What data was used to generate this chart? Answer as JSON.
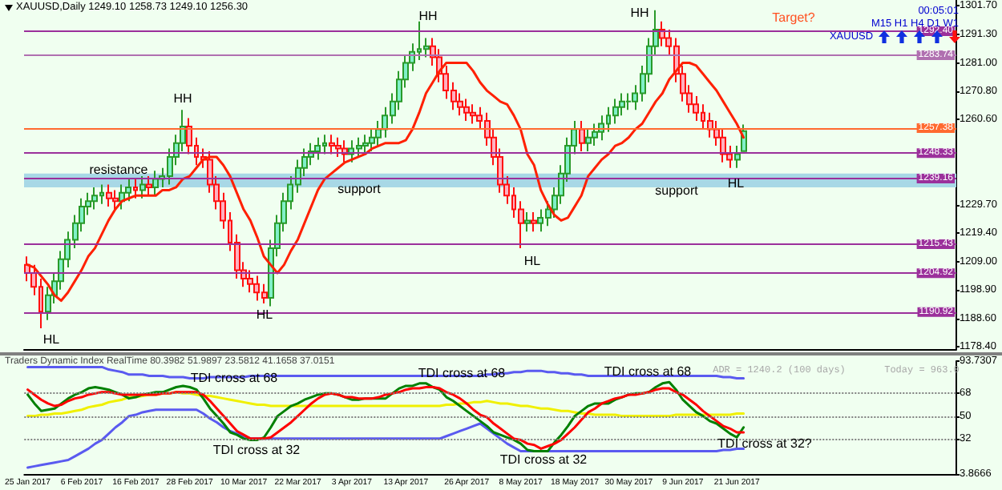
{
  "chart_data": [
    {
      "type": "candlestick",
      "title": "XAUUSD,Daily 1249.10 1258.73 1249.10 1256.30",
      "tick_labels": "y",
      "marker": "none",
      "categories": [
        null,
        null,
        null,
        null,
        null,
        null,
        null,
        null,
        null,
        null,
        null,
        null,
        null,
        null,
        null,
        null,
        null,
        null,
        null,
        null,
        null,
        null,
        null,
        null,
        null,
        null,
        null,
        null,
        null,
        null,
        null,
        null,
        null,
        null,
        null,
        null,
        null,
        null,
        null,
        null,
        null,
        null,
        null,
        null,
        null,
        null,
        null,
        null,
        null,
        null,
        null,
        null,
        null,
        null,
        null,
        null,
        null,
        null,
        null,
        null,
        null,
        null,
        null,
        null,
        null,
        null,
        null,
        null,
        null,
        null,
        null,
        null,
        null,
        null,
        null,
        null,
        null,
        null,
        null,
        null,
        null,
        null,
        null,
        null,
        null,
        null,
        null,
        null,
        null,
        null,
        null,
        null,
        null,
        null,
        null,
        null,
        null,
        null,
        null,
        null,
        null,
        null,
        null,
        null,
        null,
        null,
        null,
        null,
        null,
        null,
        null,
        null,
        null,
        null,
        null,
        null,
        null,
        null,
        null,
        null,
        null,
        null,
        null,
        null,
        null,
        null,
        null,
        null,
        null,
        null,
        null,
        null,
        null,
        null,
        null,
        null,
        null,
        null
      ],
      "ohlc": [
        [
          1208,
          1211,
          1202,
          1205
        ],
        [
          1205,
          1208,
          1197,
          1200
        ],
        [
          1200,
          1203,
          1185,
          1191
        ],
        [
          1191,
          1200,
          1188,
          1197
        ],
        [
          1197,
          1205,
          1194,
          1202
        ],
        [
          1202,
          1213,
          1199,
          1210
        ],
        [
          1210,
          1220,
          1207,
          1217
        ],
        [
          1217,
          1226,
          1214,
          1223
        ],
        [
          1223,
          1232,
          1220,
          1229
        ],
        [
          1229,
          1234,
          1226,
          1231
        ],
        [
          1231,
          1236,
          1228,
          1233
        ],
        [
          1233,
          1237,
          1230,
          1234
        ],
        [
          1234,
          1237,
          1229,
          1232
        ],
        [
          1232,
          1235,
          1228,
          1231
        ],
        [
          1231,
          1237,
          1228,
          1234
        ],
        [
          1234,
          1239,
          1231,
          1236
        ],
        [
          1236,
          1239,
          1232,
          1235
        ],
        [
          1235,
          1240,
          1232,
          1237
        ],
        [
          1237,
          1240,
          1233,
          1236
        ],
        [
          1236,
          1242,
          1233,
          1239
        ],
        [
          1239,
          1243,
          1236,
          1240
        ],
        [
          1240,
          1250,
          1237,
          1247
        ],
        [
          1247,
          1255,
          1244,
          1252
        ],
        [
          1252,
          1264,
          1249,
          1258
        ],
        [
          1258,
          1261,
          1248,
          1251
        ],
        [
          1251,
          1254,
          1244,
          1247
        ],
        [
          1247,
          1250,
          1243,
          1246
        ],
        [
          1246,
          1249,
          1234,
          1237
        ],
        [
          1237,
          1240,
          1228,
          1231
        ],
        [
          1231,
          1234,
          1221,
          1224
        ],
        [
          1224,
          1227,
          1213,
          1216
        ],
        [
          1216,
          1219,
          1203,
          1206
        ],
        [
          1206,
          1209,
          1200,
          1203
        ],
        [
          1203,
          1206,
          1198,
          1201
        ],
        [
          1201,
          1204,
          1195,
          1198
        ],
        [
          1198,
          1201,
          1194,
          1196
        ],
        [
          1196,
          1217,
          1193,
          1214
        ],
        [
          1214,
          1226,
          1211,
          1223
        ],
        [
          1223,
          1234,
          1220,
          1231
        ],
        [
          1231,
          1240,
          1228,
          1237
        ],
        [
          1237,
          1246,
          1234,
          1243
        ],
        [
          1243,
          1250,
          1240,
          1247
        ],
        [
          1247,
          1252,
          1244,
          1249
        ],
        [
          1249,
          1254,
          1246,
          1251
        ],
        [
          1251,
          1255,
          1248,
          1252
        ],
        [
          1252,
          1255,
          1248,
          1251
        ],
        [
          1251,
          1254,
          1247,
          1250
        ],
        [
          1250,
          1253,
          1245,
          1248
        ],
        [
          1248,
          1253,
          1245,
          1250
        ],
        [
          1250,
          1254,
          1247,
          1251
        ],
        [
          1251,
          1255,
          1248,
          1252
        ],
        [
          1252,
          1257,
          1249,
          1254
        ],
        [
          1254,
          1260,
          1251,
          1257
        ],
        [
          1257,
          1265,
          1254,
          1262
        ],
        [
          1262,
          1270,
          1259,
          1267
        ],
        [
          1267,
          1278,
          1264,
          1275
        ],
        [
          1275,
          1284,
          1272,
          1281
        ],
        [
          1281,
          1288,
          1278,
          1285
        ],
        [
          1285,
          1296,
          1282,
          1286
        ],
        [
          1286,
          1290,
          1283,
          1287
        ],
        [
          1287,
          1290,
          1280,
          1283
        ],
        [
          1283,
          1286,
          1274,
          1277
        ],
        [
          1277,
          1280,
          1268,
          1271
        ],
        [
          1271,
          1274,
          1264,
          1267
        ],
        [
          1267,
          1270,
          1262,
          1265
        ],
        [
          1265,
          1268,
          1260,
          1263
        ],
        [
          1263,
          1266,
          1259,
          1262
        ],
        [
          1262,
          1265,
          1257,
          1260
        ],
        [
          1260,
          1263,
          1251,
          1254
        ],
        [
          1254,
          1257,
          1244,
          1247
        ],
        [
          1247,
          1250,
          1234,
          1237
        ],
        [
          1237,
          1240,
          1230,
          1233
        ],
        [
          1233,
          1236,
          1225,
          1228
        ],
        [
          1228,
          1231,
          1214,
          1223
        ],
        [
          1223,
          1227,
          1220,
          1224
        ],
        [
          1224,
          1227,
          1220,
          1223
        ],
        [
          1223,
          1228,
          1220,
          1225
        ],
        [
          1225,
          1231,
          1222,
          1228
        ],
        [
          1228,
          1236,
          1225,
          1233
        ],
        [
          1233,
          1244,
          1230,
          1241
        ],
        [
          1241,
          1254,
          1238,
          1251
        ],
        [
          1251,
          1260,
          1248,
          1257
        ],
        [
          1257,
          1260,
          1249,
          1252
        ],
        [
          1252,
          1257,
          1249,
          1254
        ],
        [
          1254,
          1259,
          1251,
          1256
        ],
        [
          1256,
          1262,
          1253,
          1259
        ],
        [
          1259,
          1265,
          1256,
          1262
        ],
        [
          1262,
          1268,
          1259,
          1265
        ],
        [
          1265,
          1270,
          1262,
          1267
        ],
        [
          1267,
          1270,
          1264,
          1267
        ],
        [
          1267,
          1273,
          1264,
          1270
        ],
        [
          1270,
          1280,
          1267,
          1277
        ],
        [
          1277,
          1290,
          1274,
          1287
        ],
        [
          1287,
          1300,
          1284,
          1293
        ],
        [
          1293,
          1296,
          1287,
          1290
        ],
        [
          1290,
          1293,
          1284,
          1287
        ],
        [
          1287,
          1290,
          1274,
          1277
        ],
        [
          1277,
          1280,
          1267,
          1270
        ],
        [
          1270,
          1273,
          1263,
          1266
        ],
        [
          1266,
          1269,
          1260,
          1263
        ],
        [
          1263,
          1266,
          1257,
          1260
        ],
        [
          1260,
          1263,
          1254,
          1257
        ],
        [
          1257,
          1260,
          1251,
          1254
        ],
        [
          1254,
          1257,
          1245,
          1248
        ],
        [
          1248,
          1251,
          1243,
          1246
        ],
        [
          1246,
          1251,
          1243,
          1248
        ],
        [
          1249.1,
          1258.73,
          1249.1,
          1256.3
        ],
        null,
        null,
        null,
        null,
        null,
        null,
        null,
        null,
        null,
        null,
        null,
        null,
        null,
        null,
        null,
        null,
        null,
        null,
        null,
        null,
        null,
        null,
        null,
        null,
        null,
        null,
        null,
        null,
        null,
        null,
        null
      ],
      "series": [
        {
          "type": "line",
          "color": "#ff2000",
          "values": [
            1208,
            1207,
            1204,
            1201,
            1197,
            1195,
            1198,
            1202,
            1206,
            1211,
            1214,
            1219,
            1224,
            1228,
            1231,
            1232,
            1233,
            1233,
            1233,
            1233,
            1235,
            1235,
            1236,
            1239,
            1240,
            1243,
            1246,
            1247,
            1247,
            1244,
            1240,
            1234,
            1228,
            1224,
            1218,
            1211,
            1208,
            1205,
            1208,
            1213,
            1217,
            1223,
            1229,
            1235,
            1239,
            1241,
            1243,
            1245,
            1246,
            1247,
            1248,
            1250,
            1251,
            1252,
            1252,
            1252,
            1253,
            1257,
            1263,
            1270,
            1274,
            1278,
            1281,
            1281,
            1281,
            1281,
            1278,
            1274,
            1271,
            1269,
            1267,
            1266,
            1262,
            1257,
            1248,
            1244,
            1235,
            1230,
            1226,
            1224,
            1225,
            1229,
            1233,
            1240,
            1243,
            1246,
            1248,
            1251,
            1252,
            1254,
            1257,
            1259,
            1263,
            1267,
            1270,
            1275,
            1278,
            1281,
            1281,
            1280,
            1277,
            1274,
            1271,
            1267,
            1263,
            1259,
            1254,
            null,
            null,
            null,
            null,
            null,
            null,
            null,
            null,
            null,
            null,
            null,
            null,
            null,
            null,
            null,
            null,
            null,
            null,
            null,
            null,
            null,
            null,
            null,
            null,
            null,
            null,
            null,
            null,
            null,
            null,
            null
          ]
        }
      ],
      "ylim": [
        1177.5,
        1303.5
      ],
      "yticks": [
        {
          "value": 1301.7,
          "label": "1301.70"
        },
        {
          "value": 1291.3,
          "label": "1291.30"
        },
        {
          "value": 1281,
          "label": "1281.00"
        },
        {
          "value": 1270.8,
          "label": "1270.80"
        },
        {
          "value": 1260.6,
          "label": "1260.60"
        },
        {
          "value": 1229.7,
          "label": "1229.70"
        },
        {
          "value": 1219.4,
          "label": "1219.40"
        },
        {
          "value": 1209,
          "label": "1209.00"
        },
        {
          "value": 1198.9,
          "label": "1198.90"
        },
        {
          "value": 1188.6,
          "label": "1188.60"
        },
        {
          "value": 1178.4,
          "label": "1178.40"
        }
      ],
      "ref_lines": [
        {
          "axis": "y",
          "value": 1292.4,
          "label": "1292.40",
          "color": "#9b309b"
        },
        {
          "axis": "y",
          "value": 1283.74,
          "label": "1283.74",
          "color": "#b070b0"
        },
        {
          "axis": "y",
          "value": 1257.38,
          "label": "1257.38",
          "color": "#ff6a30"
        },
        {
          "axis": "y",
          "value": 1248.33,
          "label": "1248.33",
          "color": "#9b309b"
        },
        {
          "axis": "y",
          "value": 1239.16,
          "label": "1239.16",
          "color": "#9b309b"
        },
        {
          "axis": "y",
          "value": 1215.43,
          "label": "1215.43",
          "color": "#9b309b"
        },
        {
          "axis": "y",
          "value": 1204.92,
          "label": "1204.92",
          "color": "#9b309b"
        },
        {
          "axis": "y",
          "value": 1190.92,
          "label": "1190.92",
          "color": "#9b309b"
        }
      ],
      "bands": [
        {
          "axis": "y",
          "from": 1236,
          "to": 1241,
          "color": "#a8d8e6"
        }
      ],
      "annotations": [
        {
          "text": "HH",
          "y": 1264
        },
        "HH",
        "HH",
        "HL",
        {
          "text": "HL",
          "y": 1194
        },
        {
          "text": "HL",
          "y": 1214
        },
        {
          "text": "HL",
          "y": 1243
        },
        "resistance",
        "support",
        "support",
        "Target?",
        "00:05:01",
        "M15 H1 H4 D1 W1",
        "XAUUSD"
      ]
    },
    {
      "type": "line",
      "title": "Traders Dynamic Index RealTime 80.3982 51.9897 23.5812 41.1658 37.0151",
      "marker": "none",
      "categories": [
        "25 Jan 2017",
        null,
        null,
        null,
        null,
        null,
        null,
        null,
        "6 Feb 2017",
        null,
        null,
        null,
        null,
        null,
        null,
        null,
        "16 Feb 2017",
        null,
        null,
        null,
        null,
        null,
        null,
        null,
        "28 Feb 2017",
        null,
        null,
        null,
        null,
        null,
        null,
        null,
        "10 Mar 2017",
        null,
        null,
        null,
        null,
        null,
        null,
        null,
        "22 Mar 2017",
        null,
        null,
        null,
        null,
        null,
        null,
        null,
        "3 Apr 2017",
        null,
        null,
        null,
        null,
        null,
        null,
        null,
        "13 Apr 2017",
        null,
        null,
        null,
        null,
        null,
        null,
        null,
        null,
        "26 Apr 2017",
        null,
        null,
        null,
        null,
        null,
        null,
        null,
        "8 May 2017",
        null,
        null,
        null,
        null,
        null,
        null,
        null,
        "18 May 2017",
        null,
        null,
        null,
        null,
        null,
        null,
        null,
        "30 May 2017",
        null,
        null,
        null,
        null,
        null,
        null,
        null,
        "9 Jun 2017",
        null,
        null,
        null,
        null,
        null,
        null,
        null,
        "21 Jun 2017",
        null,
        null,
        null,
        null,
        null,
        null,
        null,
        null,
        null,
        null,
        null,
        null,
        null,
        null,
        null,
        null,
        null,
        null,
        null,
        null,
        null,
        null,
        null,
        null,
        null,
        null,
        null,
        null,
        null,
        null,
        null,
        null
      ],
      "series": [
        {
          "color": "#5a5af0",
          "values": [
            89,
            89,
            89,
            89,
            89,
            89,
            89,
            89,
            89,
            89,
            89,
            89,
            87,
            86,
            85,
            83,
            83,
            83,
            82,
            82,
            82,
            81,
            81,
            81,
            80,
            80,
            80,
            81,
            81,
            81,
            81,
            81,
            81,
            82,
            82,
            82,
            82,
            82,
            82,
            82,
            82,
            82,
            82,
            82,
            82,
            82,
            82,
            82,
            82,
            82,
            82,
            82,
            82,
            82,
            82,
            82,
            82,
            82,
            82,
            82,
            82,
            82,
            82,
            82,
            82,
            82,
            82,
            82,
            83,
            83,
            84,
            84,
            85,
            85,
            86,
            86,
            86,
            85,
            85,
            84,
            84,
            83,
            83,
            82,
            82,
            82,
            82,
            82,
            82,
            82,
            82,
            82,
            82,
            82,
            82,
            82,
            82,
            82,
            82,
            82,
            82,
            82,
            82,
            81,
            81,
            80,
            80,
            null,
            null,
            null,
            null,
            null,
            null,
            null,
            null,
            null,
            null,
            null,
            null,
            null,
            null,
            null,
            null,
            null,
            null,
            null,
            null,
            null,
            null,
            null,
            null,
            null,
            null,
            null,
            null,
            null,
            null,
            null
          ]
        },
        {
          "color": "#5a5af0",
          "values": [
            9,
            10,
            11,
            12,
            13,
            14,
            15,
            18,
            21,
            24,
            28,
            31,
            36,
            41,
            45,
            50,
            51,
            53,
            54,
            55,
            55,
            55,
            55,
            55,
            55,
            55,
            52,
            48,
            45,
            41,
            38,
            36,
            34,
            32,
            32,
            32,
            32,
            32,
            32,
            32,
            32,
            32,
            32,
            32,
            32,
            32,
            32,
            32,
            32,
            32,
            32,
            32,
            32,
            32,
            32,
            32,
            32,
            32,
            32,
            32,
            32,
            32,
            34,
            36,
            38,
            40,
            42,
            44,
            40,
            36,
            32,
            28,
            25,
            22,
            22,
            22,
            22,
            22,
            22,
            22,
            22,
            22,
            22,
            22,
            22,
            22,
            22,
            22,
            22,
            22,
            22,
            22,
            22,
            22,
            22,
            22,
            22,
            22,
            22,
            22,
            22,
            22,
            22,
            23,
            23,
            24,
            24,
            null,
            null,
            null,
            null,
            null,
            null,
            null,
            null,
            null,
            null,
            null,
            null,
            null,
            null,
            null,
            null,
            null,
            null,
            null,
            null,
            null,
            null,
            null,
            null,
            null,
            null,
            null,
            null,
            null,
            null,
            null
          ]
        },
        {
          "color": "#f0f000",
          "values": [
            50,
            50,
            51,
            51,
            52,
            52,
            53,
            54,
            55,
            57,
            58,
            59,
            61,
            62,
            63,
            65,
            65,
            66,
            67,
            67,
            68,
            68,
            69,
            68,
            68,
            67,
            66,
            66,
            65,
            64,
            63,
            62,
            61,
            60,
            59,
            59,
            58,
            58,
            58,
            58,
            58,
            58,
            58,
            58,
            58,
            58,
            58,
            58,
            58,
            58,
            58,
            58,
            58,
            58,
            58,
            58,
            58,
            58,
            58,
            58,
            58,
            58,
            59,
            59,
            60,
            60,
            61,
            61,
            62,
            61,
            60,
            60,
            59,
            58,
            58,
            57,
            56,
            56,
            55,
            54,
            54,
            53,
            52,
            52,
            51,
            51,
            51,
            51,
            50,
            50,
            50,
            50,
            50,
            50,
            50,
            50,
            51,
            51,
            51,
            51,
            51,
            51,
            51,
            51,
            51,
            52,
            52,
            null,
            null,
            null,
            null,
            null,
            null,
            null,
            null,
            null,
            null,
            null,
            null,
            null,
            null,
            null,
            null,
            null,
            null,
            null,
            null,
            null,
            null,
            null,
            null,
            null,
            null,
            null,
            null,
            null,
            null,
            null
          ]
        },
        {
          "color": "#008000",
          "values": [
            67,
            60,
            54,
            55,
            56,
            60,
            64,
            67,
            69,
            72,
            73,
            72,
            71,
            69,
            67,
            64,
            65,
            67,
            68,
            69,
            69,
            71,
            73,
            74,
            73,
            71,
            64,
            56,
            50,
            44,
            37,
            35,
            32,
            31,
            31,
            33,
            41,
            50,
            54,
            58,
            60,
            63,
            65,
            67,
            68,
            68,
            67,
            65,
            63,
            63,
            64,
            64,
            64,
            64,
            68,
            72,
            74,
            74,
            76,
            76,
            73,
            71,
            65,
            62,
            58,
            54,
            50,
            46,
            42,
            37,
            35,
            33,
            31,
            28,
            23,
            22,
            22,
            22,
            29,
            35,
            42,
            50,
            54,
            58,
            60,
            60,
            60,
            63,
            65,
            67,
            68,
            68,
            69,
            73,
            76,
            77,
            71,
            63,
            58,
            53,
            50,
            46,
            44,
            40,
            36,
            33,
            41,
            null,
            null,
            null,
            null,
            null,
            null,
            null,
            null,
            null,
            null,
            null,
            null,
            null,
            null,
            null,
            null,
            null,
            null,
            null,
            null,
            null,
            null,
            null,
            null,
            null,
            null,
            null,
            null,
            null,
            null,
            null
          ]
        },
        {
          "color": "#ff0000",
          "values": [
            71,
            67,
            63,
            60,
            58,
            59,
            62,
            64,
            65,
            67,
            68,
            69,
            69,
            68,
            67,
            67,
            67,
            67,
            67,
            67,
            68,
            68,
            69,
            69,
            69,
            69,
            67,
            62,
            56,
            50,
            44,
            38,
            35,
            32,
            32,
            32,
            33,
            37,
            41,
            45,
            50,
            55,
            60,
            64,
            67,
            68,
            67,
            65,
            65,
            64,
            64,
            64,
            65,
            67,
            68,
            69,
            71,
            72,
            72,
            73,
            73,
            72,
            69,
            67,
            64,
            60,
            55,
            51,
            49,
            44,
            40,
            36,
            32,
            31,
            28,
            27,
            24,
            26,
            28,
            31,
            36,
            41,
            47,
            53,
            56,
            60,
            62,
            64,
            65,
            67,
            67,
            68,
            69,
            71,
            72,
            72,
            69,
            67,
            63,
            59,
            54,
            50,
            46,
            42,
            40,
            37,
            37,
            null,
            null,
            null,
            null,
            null,
            null,
            null,
            null,
            null,
            null,
            null,
            null,
            null,
            null,
            null,
            null,
            null,
            null,
            null,
            null,
            null,
            null,
            null,
            null,
            null,
            null,
            null,
            null,
            null,
            null,
            null
          ]
        }
      ],
      "ylim": [
        3.8666,
        93.7307
      ],
      "yticks": [
        93.7307,
        68,
        50,
        32,
        3.8666
      ],
      "ref_lines": [
        {
          "axis": "y",
          "value": 68,
          "label": null,
          "color": "#808080",
          "line_style": "dotted"
        },
        {
          "axis": "y",
          "value": 50,
          "label": null,
          "color": "#808080",
          "line_style": "dotted"
        },
        {
          "axis": "y",
          "value": 32,
          "label": null,
          "color": "#808080",
          "line_style": "dotted"
        }
      ],
      "annotations": [
        "TDI cross at 68",
        "TDI cross at 68",
        "TDI cross at 68",
        "TDI cross at 32",
        "TDI cross at 32",
        "TDI cross at 32?",
        "ADR = 1240.2 (100 days)",
        "Today = 963.0"
      ]
    }
  ]
}
